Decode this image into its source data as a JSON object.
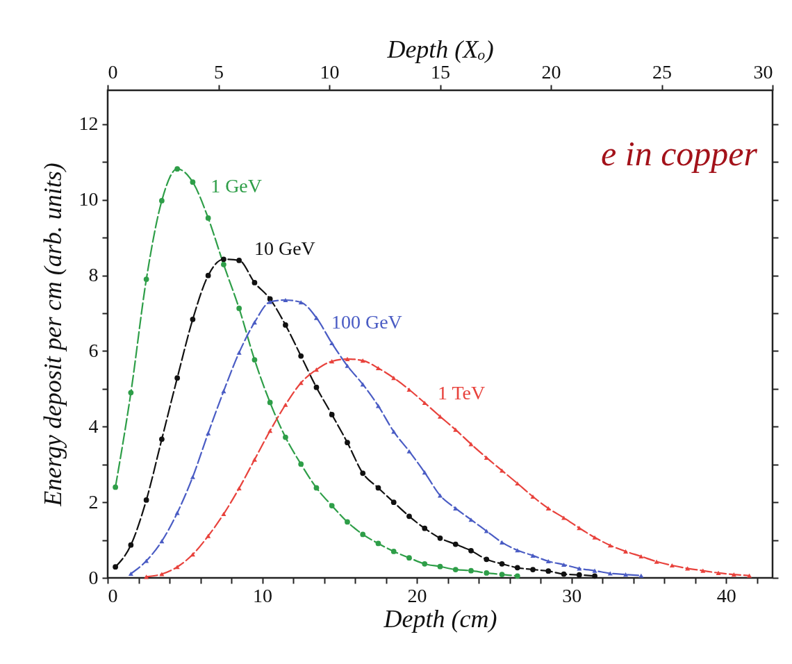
{
  "chart_data": {
    "type": "line",
    "xlabel": "Depth (cm)",
    "ylabel": "Energy deposit per cm (arb. units)",
    "x2label": "Depth (Xₒ)",
    "xlim": [
      0,
      43
    ],
    "xticks": [
      0,
      {
        "value": 2,
        "label": null
      },
      {
        "value": 4,
        "label": null
      },
      {
        "value": 6,
        "label": null
      },
      {
        "value": 8,
        "label": null
      },
      10,
      {
        "value": 12,
        "label": null
      },
      {
        "value": 14,
        "label": null
      },
      {
        "value": 16,
        "label": null
      },
      {
        "value": 18,
        "label": null
      },
      20,
      {
        "value": 22,
        "label": null
      },
      {
        "value": 24,
        "label": null
      },
      {
        "value": 26,
        "label": null
      },
      {
        "value": 28,
        "label": null
      },
      30,
      {
        "value": 32,
        "label": null
      },
      {
        "value": 34,
        "label": null
      },
      {
        "value": 36,
        "label": null
      },
      {
        "value": 38,
        "label": null
      },
      40,
      {
        "value": 42,
        "label": null
      }
    ],
    "x2lim": [
      0,
      30
    ],
    "x2ticks": [
      0,
      5,
      10,
      15,
      20,
      25,
      30
    ],
    "ylim": [
      0,
      12.9
    ],
    "yticks": [
      0,
      {
        "value": 1,
        "label": null
      },
      2,
      {
        "value": 3,
        "label": null
      },
      4,
      {
        "value": 5,
        "label": null
      },
      6,
      {
        "value": 7,
        "label": null
      },
      8,
      {
        "value": 9,
        "label": null
      },
      10,
      {
        "value": 11,
        "label": null
      },
      12
    ],
    "line_style": "dashed",
    "grid": false,
    "annotations": [
      "e in copper"
    ],
    "series": [
      {
        "name": "1 GeV",
        "color": "#2e9e48",
        "marker": "circle",
        "x": [
          0.5,
          1.5,
          2.5,
          3.5,
          4.5,
          5.5,
          6.5,
          7.5,
          8.5,
          9.5,
          10.5,
          11.5,
          12.5,
          13.5,
          14.5,
          15.5,
          16.5,
          17.5,
          18.5,
          19.5,
          20.5,
          21.5,
          22.5,
          23.5,
          24.5,
          25.5,
          26.5
        ],
        "values": [
          2.4,
          4.9,
          7.9,
          9.98,
          10.82,
          10.47,
          9.52,
          8.29,
          7.13,
          5.77,
          4.64,
          3.72,
          3.01,
          2.38,
          1.91,
          1.48,
          1.15,
          0.91,
          0.7,
          0.53,
          0.37,
          0.3,
          0.22,
          0.19,
          0.13,
          0.09,
          0.05
        ]
      },
      {
        "name": "10 GeV",
        "color": "#111111",
        "marker": "circle",
        "x": [
          0.5,
          1.5,
          2.5,
          3.5,
          4.5,
          5.5,
          6.5,
          7.5,
          8.5,
          9.5,
          10.5,
          11.5,
          12.5,
          13.5,
          14.5,
          15.5,
          16.5,
          17.5,
          18.5,
          19.5,
          20.5,
          21.5,
          22.5,
          23.5,
          24.5,
          25.5,
          26.5,
          27.5,
          28.5,
          29.5,
          30.5,
          31.5
        ],
        "values": [
          0.29,
          0.87,
          2.06,
          3.67,
          5.29,
          6.84,
          8.0,
          8.43,
          8.4,
          7.81,
          7.38,
          6.69,
          5.87,
          5.04,
          4.32,
          3.58,
          2.77,
          2.38,
          2.0,
          1.63,
          1.31,
          1.05,
          0.89,
          0.72,
          0.49,
          0.37,
          0.27,
          0.22,
          0.18,
          0.1,
          0.08,
          0.05
        ]
      },
      {
        "name": "100 GeV",
        "color": "#4a5cc4",
        "marker": "triangle",
        "x": [
          1.5,
          2.5,
          3.5,
          4.5,
          5.5,
          6.5,
          7.5,
          8.5,
          9.5,
          10.5,
          11.5,
          12.5,
          13.5,
          14.5,
          15.5,
          16.5,
          17.5,
          18.5,
          19.5,
          20.5,
          21.5,
          22.5,
          23.5,
          24.5,
          25.5,
          26.5,
          27.5,
          28.5,
          29.5,
          30.5,
          31.5,
          32.5,
          33.5,
          34.5
        ],
        "values": [
          0.11,
          0.45,
          0.97,
          1.72,
          2.67,
          3.83,
          4.94,
          5.96,
          6.76,
          7.3,
          7.35,
          7.29,
          6.88,
          6.21,
          5.61,
          5.12,
          4.55,
          3.87,
          3.35,
          2.79,
          2.18,
          1.84,
          1.54,
          1.24,
          0.94,
          0.73,
          0.59,
          0.44,
          0.35,
          0.25,
          0.19,
          0.12,
          0.09,
          0.06
        ]
      },
      {
        "name": "1 TeV",
        "color": "#e8423c",
        "marker": "triangle",
        "x": [
          2.5,
          3.5,
          4.5,
          5.5,
          6.5,
          7.5,
          8.5,
          9.5,
          10.5,
          11.5,
          12.5,
          13.5,
          14.5,
          15.5,
          16.5,
          17.5,
          18.5,
          19.5,
          20.5,
          21.5,
          22.5,
          23.5,
          24.5,
          25.5,
          26.5,
          27.5,
          28.5,
          29.5,
          30.5,
          31.5,
          32.5,
          33.5,
          34.5,
          35.5,
          36.5,
          37.5,
          38.5,
          39.5,
          40.5,
          41.5
        ],
        "values": [
          0.03,
          0.1,
          0.29,
          0.62,
          1.11,
          1.69,
          2.37,
          3.13,
          3.89,
          4.58,
          5.16,
          5.51,
          5.73,
          5.79,
          5.75,
          5.55,
          5.29,
          4.98,
          4.63,
          4.27,
          3.92,
          3.54,
          3.18,
          2.84,
          2.5,
          2.15,
          1.84,
          1.59,
          1.32,
          1.07,
          0.86,
          0.7,
          0.57,
          0.43,
          0.33,
          0.25,
          0.19,
          0.13,
          0.09,
          0.06
        ]
      }
    ]
  }
}
